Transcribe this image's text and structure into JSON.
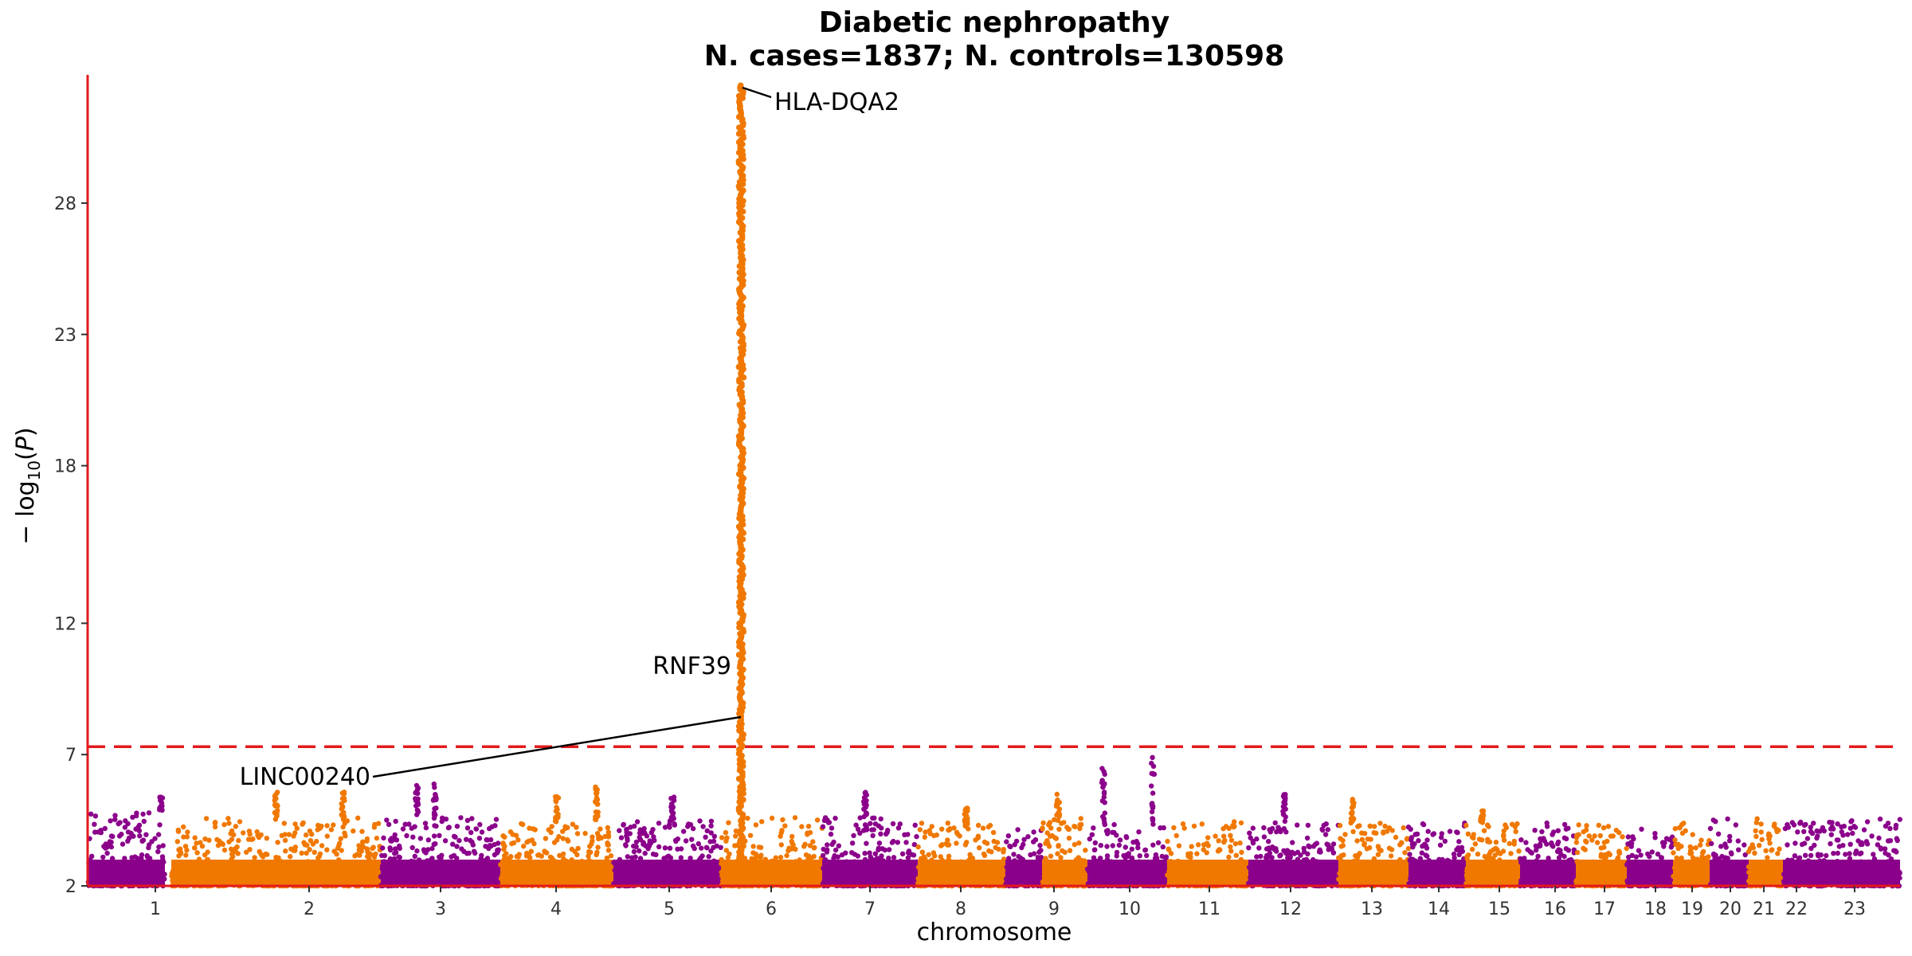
{
  "chart_data": {
    "type": "scatter",
    "title_line1": "Diabetic nephropathy",
    "title_line2": "N. cases=1837; N. controls=130598",
    "xlabel": "chromosome",
    "ylabel": "−log10(P)",
    "ylim": [
      2,
      32.7
    ],
    "yticks": [
      2,
      7,
      12,
      18,
      23,
      28
    ],
    "significance_threshold": 7.3,
    "colors": {
      "odd_chromosome": "#8B008B",
      "even_chromosome": "#F07800",
      "threshold_line": "#E31A1C",
      "axis_line": "#E31A1C",
      "annotation_line": "#000000"
    },
    "chromosomes": [
      {
        "label": "1",
        "color": "purple",
        "typical_max": 4.8,
        "bursts": [
          {
            "pos": 0.95,
            "max": 5.4
          }
        ]
      },
      {
        "label": "2",
        "color": "orange",
        "typical_max": 4.6,
        "bursts": [
          {
            "pos": 0.5,
            "max": 5.6
          },
          {
            "pos": 0.82,
            "max": 5.6
          }
        ]
      },
      {
        "label": "3",
        "color": "purple",
        "typical_max": 4.6,
        "bursts": [
          {
            "pos": 0.3,
            "max": 5.9
          },
          {
            "pos": 0.45,
            "max": 6.0
          }
        ]
      },
      {
        "label": "4",
        "color": "orange",
        "typical_max": 4.4,
        "bursts": [
          {
            "pos": 0.5,
            "max": 5.5
          },
          {
            "pos": 0.85,
            "max": 5.8
          }
        ]
      },
      {
        "label": "5",
        "color": "purple",
        "typical_max": 4.5,
        "bursts": [
          {
            "pos": 0.55,
            "max": 5.4
          }
        ]
      },
      {
        "label": "6",
        "color": "orange",
        "typical_max": 4.6,
        "bursts": [],
        "peak": {
          "pos": 0.2,
          "max": 32.5
        }
      },
      {
        "label": "7",
        "color": "purple",
        "typical_max": 4.6,
        "bursts": [
          {
            "pos": 0.45,
            "max": 5.6
          }
        ]
      },
      {
        "label": "8",
        "color": "orange",
        "typical_max": 4.4,
        "bursts": [
          {
            "pos": 0.55,
            "max": 5.0
          }
        ]
      },
      {
        "label": "9",
        "color": "purple",
        "typical_max": 4.2,
        "bursts": []
      },
      {
        "label": "10",
        "color": "orange",
        "typical_max": 4.6,
        "bursts": [
          {
            "pos": 0.35,
            "max": 5.5
          }
        ]
      },
      {
        "label": "11",
        "color": "purple",
        "typical_max": 4.4,
        "bursts": [
          {
            "pos": 0.2,
            "max": 6.7
          },
          {
            "pos": 0.82,
            "max": 7.1
          }
        ]
      },
      {
        "label": "12",
        "color": "orange",
        "typical_max": 4.5,
        "bursts": []
      },
      {
        "label": "13",
        "color": "purple",
        "typical_max": 4.4,
        "bursts": [
          {
            "pos": 0.4,
            "max": 5.5
          }
        ]
      },
      {
        "label": "14",
        "color": "orange",
        "typical_max": 4.4,
        "bursts": [
          {
            "pos": 0.2,
            "max": 5.3
          }
        ]
      },
      {
        "label": "15",
        "color": "purple",
        "typical_max": 4.4,
        "bursts": []
      },
      {
        "label": "16",
        "color": "orange",
        "typical_max": 4.4,
        "bursts": [
          {
            "pos": 0.3,
            "max": 4.9
          }
        ]
      },
      {
        "label": "17",
        "color": "purple",
        "typical_max": 4.4,
        "bursts": []
      },
      {
        "label": "18",
        "color": "orange",
        "typical_max": 4.4,
        "bursts": []
      },
      {
        "label": "19",
        "color": "purple",
        "typical_max": 4.4,
        "bursts": []
      },
      {
        "label": "20",
        "color": "orange",
        "typical_max": 4.5,
        "bursts": []
      },
      {
        "label": "21",
        "color": "purple",
        "typical_max": 4.6,
        "bursts": []
      },
      {
        "label": "22",
        "color": "orange",
        "typical_max": 4.6,
        "bursts": []
      },
      {
        "label": "23",
        "color": "purple",
        "typical_max": 4.6,
        "bursts": []
      }
    ],
    "annotations": [
      {
        "gene": "HLA-DQA2",
        "chromosome": "6",
        "y": 32.5
      },
      {
        "gene": "RNF39",
        "chromosome": "6",
        "y": 9.1
      },
      {
        "gene": "LINC00240",
        "chromosome": "6",
        "y": 8.3
      }
    ]
  }
}
